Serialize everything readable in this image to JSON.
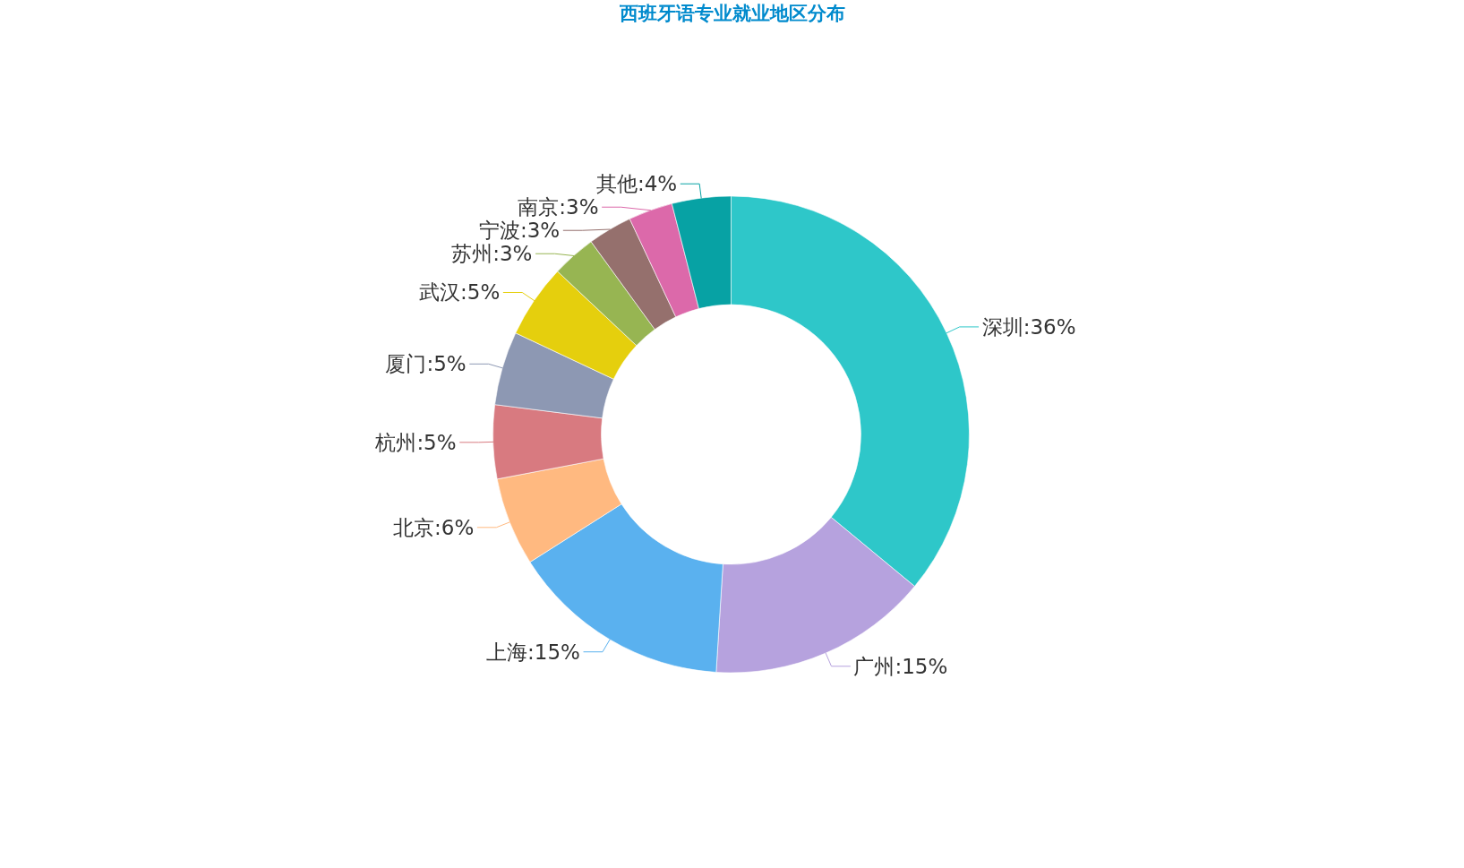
{
  "chart_data": {
    "type": "donut",
    "title": "西班牙语专业就业地区分布",
    "categories": [
      "深圳",
      "广州",
      "上海",
      "北京",
      "杭州",
      "厦门",
      "武汉",
      "苏州",
      "宁波",
      "南京",
      "其他"
    ],
    "values": [
      36,
      15,
      15,
      6,
      5,
      5,
      5,
      3,
      3,
      3,
      4
    ],
    "value_labels": [
      ":36%",
      ":15%",
      ":15%",
      ":6%",
      ":5%",
      ":5%",
      ":5%",
      ":3%",
      ":3%",
      ":3%",
      ":4%"
    ],
    "colors": [
      "#2ec7c9",
      "#b6a2de",
      "#5ab1ef",
      "#ffb980",
      "#d87a80",
      "#8d98b3",
      "#e5cf0d",
      "#97b552",
      "#95706d",
      "#dc69aa",
      "#07a2a4"
    ]
  }
}
